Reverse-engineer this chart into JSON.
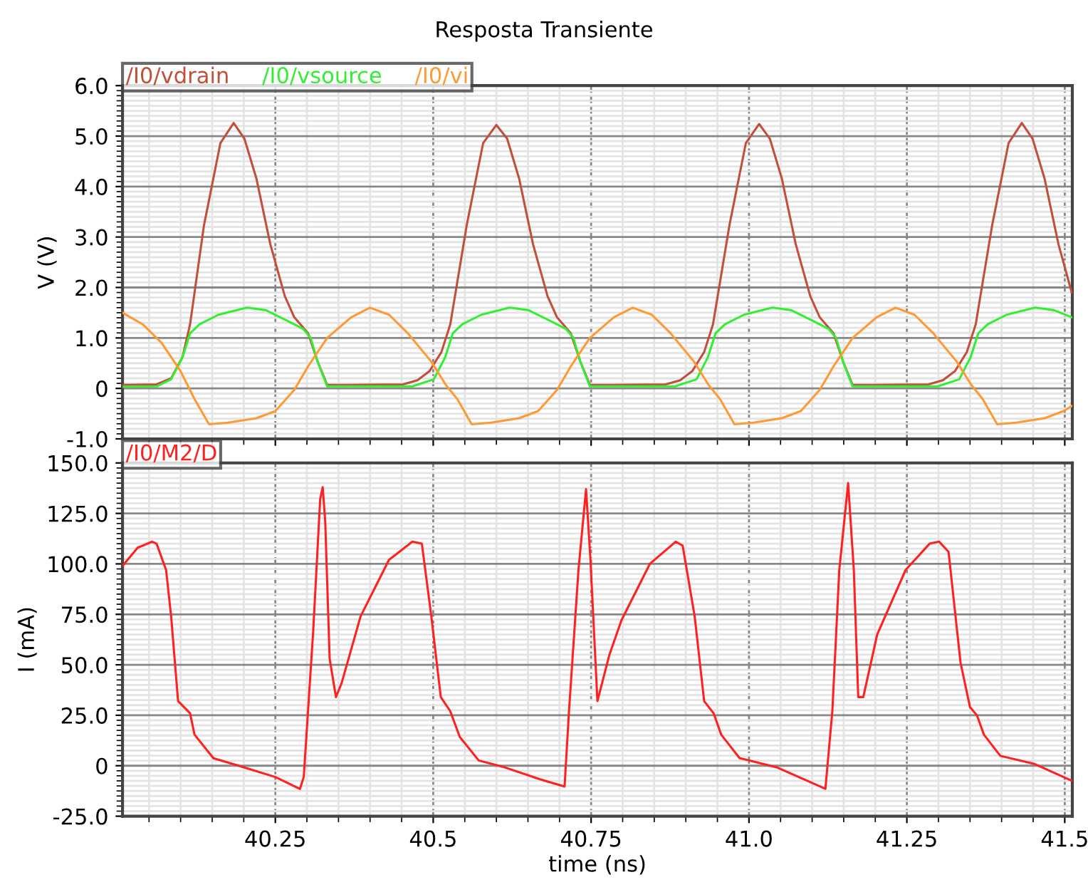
{
  "chart_data": [
    {
      "type": "line",
      "title": "Resposta Transiente",
      "ylabel": "V (V)",
      "xlim": [
        40.008,
        41.512
      ],
      "ylim": [
        -1,
        6
      ],
      "yticks": [
        {
          "value": -1,
          "label": "-1.0"
        },
        0,
        {
          "value": 1,
          "label": "1.0"
        },
        {
          "value": 2,
          "label": "2.0"
        },
        {
          "value": 3,
          "label": "3.0"
        },
        {
          "value": 4,
          "label": "4.0"
        },
        {
          "value": 5,
          "label": "5.0"
        },
        {
          "value": 6,
          "label": "6.0"
        }
      ],
      "xticks": [
        40.25,
        40.5,
        40.75,
        41,
        41.25,
        41.5
      ],
      "tick_labels": "y",
      "grid": true,
      "legend": "top left",
      "series": [
        {
          "name": "/I0/vdrain",
          "color": "#c0503c",
          "x": [
            40.008,
            40.062,
            40.085,
            40.103,
            40.115,
            40.137,
            40.163,
            40.184,
            40.201,
            40.22,
            40.242,
            40.265,
            40.28,
            40.302,
            40.317,
            40.332,
            40.362,
            40.452,
            40.475,
            40.494,
            40.513,
            40.527,
            40.553,
            40.579,
            40.6,
            40.617,
            40.636,
            40.658,
            40.681,
            40.696,
            40.718,
            40.733,
            40.748,
            40.778,
            40.868,
            40.891,
            40.91,
            40.929,
            40.943,
            40.969,
            40.995,
            41.016,
            41.033,
            41.052,
            41.074,
            41.097,
            41.112,
            41.134,
            41.149,
            41.164,
            41.194,
            41.284,
            41.307,
            41.326,
            41.345,
            41.359,
            41.385,
            41.411,
            41.432,
            41.449,
            41.468,
            41.49,
            41.511
          ],
          "values": [
            0.07,
            0.08,
            0.2,
            0.62,
            1.27,
            3.23,
            4.86,
            5.26,
            4.95,
            4.16,
            2.86,
            1.83,
            1.41,
            1.09,
            0.53,
            0.07,
            0.07,
            0.08,
            0.16,
            0.34,
            0.72,
            1.27,
            3.23,
            4.86,
            5.22,
            4.95,
            4.16,
            2.86,
            1.83,
            1.41,
            1.09,
            0.53,
            0.07,
            0.07,
            0.08,
            0.16,
            0.34,
            0.72,
            1.27,
            3.23,
            4.86,
            5.24,
            4.95,
            4.16,
            2.86,
            1.83,
            1.41,
            1.09,
            0.53,
            0.07,
            0.07,
            0.08,
            0.16,
            0.34,
            0.72,
            1.27,
            3.23,
            4.86,
            5.26,
            4.95,
            4.16,
            2.86,
            1.9
          ]
        },
        {
          "name": "/I0/vsource",
          "color": "#33ee33",
          "x": [
            40.008,
            40.062,
            40.085,
            40.103,
            40.115,
            40.13,
            40.16,
            40.205,
            40.235,
            40.272,
            40.294,
            40.306,
            40.317,
            40.332,
            40.467,
            40.501,
            40.519,
            40.531,
            40.546,
            40.576,
            40.621,
            40.651,
            40.688,
            40.71,
            40.722,
            40.733,
            40.748,
            40.883,
            40.917,
            40.935,
            40.947,
            40.962,
            40.992,
            41.037,
            41.067,
            41.104,
            41.126,
            41.138,
            41.149,
            41.164,
            41.299,
            41.333,
            41.351,
            41.363,
            41.378,
            41.408,
            41.453,
            41.483,
            41.511
          ],
          "values": [
            0.03,
            0.04,
            0.18,
            0.62,
            1.09,
            1.27,
            1.46,
            1.6,
            1.55,
            1.32,
            1.18,
            1.0,
            0.53,
            0.04,
            0.04,
            0.18,
            0.62,
            1.09,
            1.27,
            1.46,
            1.6,
            1.55,
            1.32,
            1.18,
            1.0,
            0.53,
            0.04,
            0.04,
            0.18,
            0.62,
            1.09,
            1.27,
            1.46,
            1.6,
            1.55,
            1.32,
            1.18,
            1.0,
            0.53,
            0.04,
            0.04,
            0.18,
            0.62,
            1.09,
            1.27,
            1.46,
            1.6,
            1.55,
            1.41
          ]
        },
        {
          "name": "/I0/vi",
          "color": "#ff9933",
          "x": [
            40.008,
            40.04,
            40.07,
            40.1,
            40.122,
            40.145,
            40.175,
            40.22,
            40.25,
            40.28,
            40.302,
            40.332,
            40.37,
            40.4,
            40.43,
            40.46,
            40.497,
            40.52,
            40.538,
            40.561,
            40.591,
            40.636,
            40.666,
            40.696,
            40.718,
            40.748,
            40.786,
            40.816,
            40.846,
            40.876,
            40.913,
            40.936,
            40.954,
            40.977,
            41.007,
            41.052,
            41.082,
            41.112,
            41.134,
            41.164,
            41.202,
            41.232,
            41.262,
            41.292,
            41.329,
            41.352,
            41.37,
            41.393,
            41.423,
            41.468,
            41.498,
            41.511
          ],
          "values": [
            1.5,
            1.27,
            0.9,
            0.34,
            -0.21,
            -0.71,
            -0.68,
            -0.59,
            -0.45,
            -0.03,
            0.44,
            1.0,
            1.41,
            1.6,
            1.46,
            1.09,
            0.53,
            0.07,
            -0.21,
            -0.71,
            -0.68,
            -0.59,
            -0.45,
            -0.03,
            0.44,
            1.0,
            1.41,
            1.6,
            1.46,
            1.09,
            0.53,
            0.07,
            -0.21,
            -0.71,
            -0.68,
            -0.59,
            -0.45,
            -0.03,
            0.44,
            1.0,
            1.41,
            1.6,
            1.46,
            1.09,
            0.53,
            0.07,
            -0.21,
            -0.71,
            -0.68,
            -0.59,
            -0.45,
            -0.35
          ]
        }
      ]
    },
    {
      "type": "line",
      "xlabel": "time (ns)",
      "ylabel": "I (mA)",
      "xlim": [
        40.008,
        41.512
      ],
      "ylim": [
        -25,
        150
      ],
      "yticks": [
        {
          "value": -25,
          "label": "-25.0"
        },
        0,
        {
          "value": 25,
          "label": "25.0"
        },
        {
          "value": 50,
          "label": "50.0"
        },
        {
          "value": 75,
          "label": "75.0"
        },
        {
          "value": 100,
          "label": "100.0"
        },
        {
          "value": 125,
          "label": "125.0"
        },
        {
          "value": 150,
          "label": "150.0"
        }
      ],
      "xticks": [
        40.25,
        40.5,
        40.75,
        {
          "value": 41,
          "label": "41.0"
        },
        41.25,
        41.5
      ],
      "grid": true,
      "legend": "top left",
      "series": [
        {
          "name": "/I0/M2/D",
          "color": "#ff2020",
          "x": [
            40.008,
            40.032,
            40.055,
            40.062,
            40.077,
            40.085,
            40.096,
            40.115,
            40.122,
            40.152,
            40.19,
            40.25,
            40.289,
            40.295,
            40.31,
            40.321,
            40.325,
            40.329,
            40.336,
            40.346,
            40.355,
            40.385,
            40.43,
            40.467,
            40.482,
            40.497,
            40.512,
            40.527,
            40.542,
            40.572,
            40.61,
            40.67,
            40.708,
            40.715,
            40.73,
            40.742,
            40.749,
            40.76,
            40.779,
            40.798,
            40.843,
            40.884,
            40.895,
            40.914,
            40.929,
            40.944,
            40.956,
            40.985,
            41.045,
            41.121,
            41.132,
            41.143,
            41.157,
            41.166,
            41.173,
            41.181,
            41.203,
            41.248,
            41.286,
            41.301,
            41.316,
            41.335,
            41.35,
            41.361,
            41.372,
            41.398,
            41.451,
            41.511
          ],
          "values": [
            99,
            108,
            111,
            110,
            97,
            74,
            32,
            26,
            15.4,
            3.7,
            0.2,
            -5.6,
            -11.5,
            -5.6,
            67,
            132,
            138,
            121,
            53,
            34,
            41,
            74,
            102,
            111,
            110,
            74,
            34,
            27,
            14.3,
            2.6,
            -0.5,
            -6.8,
            -10.3,
            27,
            97,
            137,
            102,
            32,
            55,
            72,
            100,
            111,
            109,
            74,
            32,
            26,
            15.4,
            3.8,
            -0.9,
            -11.4,
            27,
            97,
            140,
            97,
            34,
            34,
            65,
            97,
            110,
            111,
            106,
            51,
            29,
            25,
            15.4,
            4.9,
            1,
            -7.4
          ]
        }
      ]
    }
  ]
}
